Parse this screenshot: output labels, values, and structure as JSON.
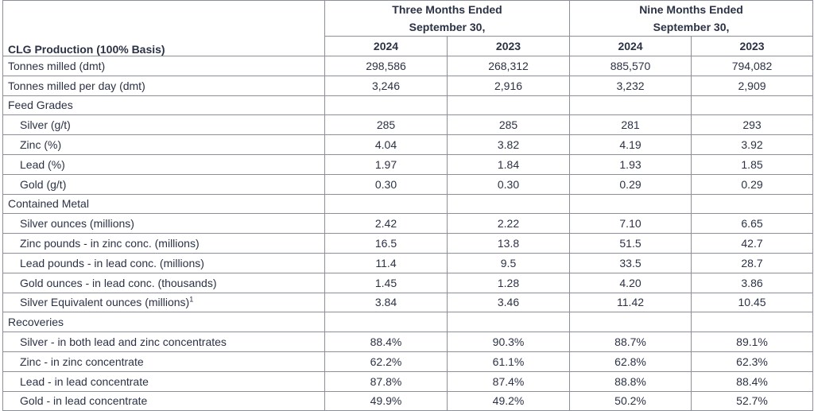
{
  "table": {
    "title": "CLG Production (100% Basis)",
    "period_headers": [
      {
        "line1": "Three Months Ended",
        "line2": "September 30,"
      },
      {
        "line1": "Nine Months Ended",
        "line2": "September 30,"
      }
    ],
    "year_headers": [
      "2024",
      "2023",
      "2024",
      "2023"
    ],
    "rows": [
      {
        "label": "Tonnes milled (dmt)",
        "values": [
          "298,586",
          "268,312",
          "885,570",
          "794,082"
        ]
      },
      {
        "label": "Tonnes milled per day (dmt)",
        "values": [
          "3,246",
          "2,916",
          "3,232",
          "2,909"
        ]
      },
      {
        "label": "Feed Grades",
        "values": [
          "",
          "",
          "",
          ""
        ]
      },
      {
        "label": "Silver (g/t)",
        "values": [
          "285",
          "285",
          "281",
          "293"
        ]
      },
      {
        "label": "Zinc (%)",
        "values": [
          "4.04",
          "3.82",
          "4.19",
          "3.92"
        ]
      },
      {
        "label": "Lead (%)",
        "values": [
          "1.97",
          "1.84",
          "1.93",
          "1.85"
        ]
      },
      {
        "label": "Gold (g/t)",
        "values": [
          "0.30",
          "0.30",
          "0.29",
          "0.29"
        ]
      },
      {
        "label": "Contained Metal",
        "values": [
          "",
          "",
          "",
          ""
        ]
      },
      {
        "label": "Silver ounces (millions)",
        "values": [
          "2.42",
          "2.22",
          "7.10",
          "6.65"
        ]
      },
      {
        "label": "Zinc pounds - in zinc conc. (millions)",
        "values": [
          "16.5",
          "13.8",
          "51.5",
          "42.7"
        ]
      },
      {
        "label": "Lead pounds - in lead conc. (millions)",
        "values": [
          "11.4",
          "9.5",
          "33.5",
          "28.7"
        ]
      },
      {
        "label": "Gold ounces - in lead conc. (thousands)",
        "values": [
          "1.45",
          "1.28",
          "4.20",
          "3.86"
        ]
      },
      {
        "label": "Silver Equivalent ounces (millions)",
        "sup": "1",
        "values": [
          "3.84",
          "3.46",
          "11.42",
          "10.45"
        ]
      },
      {
        "label": "Recoveries",
        "values": [
          "",
          "",
          "",
          ""
        ]
      },
      {
        "label": "Silver - in both lead and zinc concentrates",
        "values": [
          "88.4%",
          "90.3%",
          "88.7%",
          "89.1%"
        ]
      },
      {
        "label": "Zinc - in zinc concentrate",
        "values": [
          "62.2%",
          "61.1%",
          "62.8%",
          "62.3%"
        ]
      },
      {
        "label": "Lead - in lead concentrate",
        "values": [
          "87.8%",
          "87.4%",
          "88.8%",
          "88.4%"
        ]
      },
      {
        "label": "Gold - in lead concentrate",
        "values": [
          "49.9%",
          "49.2%",
          "50.2%",
          "52.7%"
        ]
      }
    ]
  }
}
